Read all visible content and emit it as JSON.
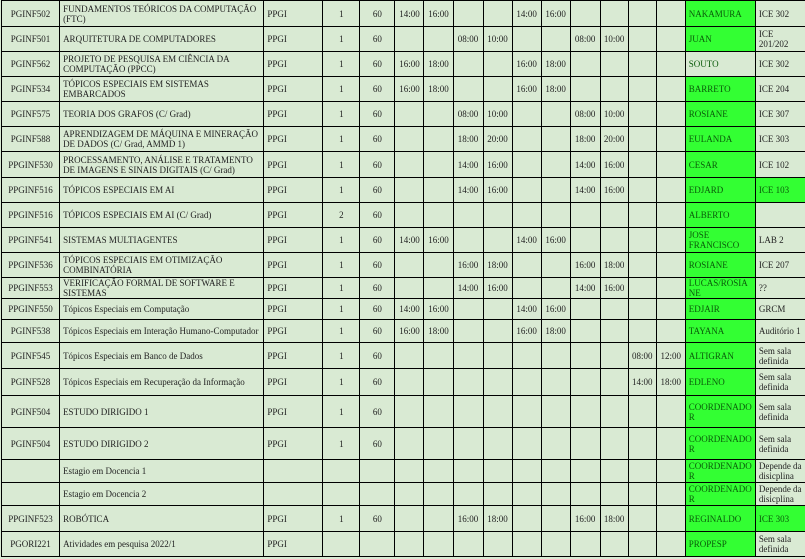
{
  "colors": {
    "row_bg": "#d9ead3",
    "highlight": "#33ff33",
    "prof_text": "#0a5a0a"
  },
  "rows": [
    {
      "code": "PGINF502",
      "name": "FUNDAMENTOS TEÓRICOS DA COMPUTAÇÃO (FTC)",
      "program": "PPGI",
      "class": "1",
      "hours": "60",
      "times": [
        "14:00",
        "16:00",
        "",
        "",
        "14:00",
        "16:00",
        "",
        "",
        "",
        ""
      ],
      "prof": "NAKAMURA",
      "prof_green": true,
      "room": "ICE 302",
      "room_green": false
    },
    {
      "code": "PGINF501",
      "name": "ARQUITETURA DE COMPUTADORES",
      "program": "PPGI",
      "class": "1",
      "hours": "60",
      "times": [
        "",
        "",
        "08:00",
        "10:00",
        "",
        "",
        "08:00",
        "10:00",
        "",
        ""
      ],
      "prof": "JUAN",
      "prof_green": true,
      "room": "ICE 201/202",
      "room_green": false
    },
    {
      "code": "PGINF562",
      "name": "PROJETO DE PESQUISA EM CIÊNCIA DA COMPUTAÇÃO (PPCC)",
      "program": "PPGI",
      "class": "1",
      "hours": "60",
      "times": [
        "16:00",
        "18:00",
        "",
        "",
        "16:00",
        "18:00",
        "",
        "",
        "",
        ""
      ],
      "prof": "SOUTO",
      "prof_green": false,
      "room": "ICE 302",
      "room_green": false
    },
    {
      "code": "PGINF534",
      "name": "TÓPICOS ESPECIAIS EM SISTEMAS EMBARCADOS",
      "program": "PPGI",
      "class": "1",
      "hours": "60",
      "times": [
        "16:00",
        "18:00",
        "",
        "",
        "16:00",
        "18:00",
        "",
        "",
        "",
        ""
      ],
      "prof": "BARRETO",
      "prof_green": true,
      "room": "ICE 204",
      "room_green": false
    },
    {
      "code": "PGINF575",
      "name": "TEORIA DOS GRAFOS (C/ Grad)",
      "program": "PPGI",
      "class": "1",
      "hours": "60",
      "times": [
        "",
        "",
        "08:00",
        "10:00",
        "",
        "",
        "08:00",
        "10:00",
        "",
        ""
      ],
      "prof": "ROSIANE",
      "prof_green": true,
      "room": "ICE 307",
      "room_green": false
    },
    {
      "code": "PGINF588",
      "name": "APRENDIZAGEM DE MÁQUINA E MINERAÇÃO DE DADOS (C/ Grad, AMMD 1)",
      "program": "PPGI",
      "class": "1",
      "hours": "60",
      "times": [
        "",
        "",
        "18:00",
        "20:00",
        "",
        "",
        "18:00",
        "20:00",
        "",
        ""
      ],
      "prof": "EULANDA",
      "prof_green": true,
      "room": "ICE 303",
      "room_green": false
    },
    {
      "code": "PPGINF530",
      "name": "PROCESSAMENTO, ANÁLISE E TRATAMENTO DE IMAGENS E SINAIS DIGITAIS (C/ Grad)",
      "program": "PPGI",
      "class": "1",
      "hours": "60",
      "times": [
        "",
        "",
        "14:00",
        "16:00",
        "",
        "",
        "14:00",
        "16:00",
        "",
        ""
      ],
      "prof": "CESAR",
      "prof_green": true,
      "room": "ICE 102",
      "room_green": false
    },
    {
      "code": "PPGINF516",
      "name": "TÓPICOS ESPECIAIS EM AI",
      "program": "PPGI",
      "class": "1",
      "hours": "60",
      "times": [
        "",
        "",
        "14:00",
        "16:00",
        "",
        "",
        "14:00",
        "16:00",
        "",
        ""
      ],
      "prof": "EDJARD",
      "prof_green": true,
      "room": "ICE 103",
      "room_green": true
    },
    {
      "code": "PPGINF516",
      "name": "TÓPICOS ESPECIAIS EM AI (C/ Grad)",
      "program": "PPGI",
      "class": "2",
      "hours": "60",
      "times": [
        "",
        "",
        "",
        "",
        "",
        "",
        "",
        "",
        "",
        ""
      ],
      "prof": "ALBERTO",
      "prof_green": true,
      "room": "",
      "room_green": false
    },
    {
      "code": "PPGINF541",
      "name": "SISTEMAS MULTIAGENTES",
      "program": "PPGI",
      "class": "1",
      "hours": "60",
      "times": [
        "14:00",
        "16:00",
        "",
        "",
        "14:00",
        "16:00",
        "",
        "",
        "",
        ""
      ],
      "prof": "JOSE FRANCISCO",
      "prof_green": true,
      "room": "LAB 2",
      "room_green": false
    },
    {
      "code": "PPGINF536",
      "name": "TÓPICOS ESPECIAIS EM OTIMIZAÇÃO COMBINATÓRIA",
      "program": "PPGI",
      "class": "1",
      "hours": "60",
      "times": [
        "",
        "",
        "16:00",
        "18:00",
        "",
        "",
        "16:00",
        "18:00",
        "",
        ""
      ],
      "prof": "ROSIANE",
      "prof_green": true,
      "room": "ICE 207",
      "room_green": false
    },
    {
      "code": "PPGINF553",
      "name": "VERIFICAÇÃO FORMAL DE SOFTWARE E SISTEMAS",
      "program": "PPGI",
      "class": "1",
      "hours": "60",
      "times": [
        "",
        "",
        "14:00",
        "16:00",
        "",
        "",
        "14:00",
        "16:00",
        "",
        ""
      ],
      "prof": "LUCAS/ROSIANE",
      "prof_green": true,
      "room": "??",
      "room_green": false
    },
    {
      "code": "PPGINF550",
      "name": "Tópicos Especiais em Computação",
      "program": "PPGI",
      "class": "1",
      "hours": "60",
      "times": [
        "14:00",
        "16:00",
        "",
        "",
        "14:00",
        "16:00",
        "",
        "",
        "",
        ""
      ],
      "prof": "EDJAIR",
      "prof_green": true,
      "room": "GRCM",
      "room_green": false
    },
    {
      "code": "PGINF538",
      "name": "Tópicos Especiais em Interação Humano-Computador",
      "program": "PPGI",
      "class": "1",
      "hours": "60",
      "times": [
        "16:00",
        "18:00",
        "",
        "",
        "16:00",
        "18:00",
        "",
        "",
        "",
        ""
      ],
      "prof": "TAYANA",
      "prof_green": true,
      "room": "Auditório 1",
      "room_green": false
    },
    {
      "code": "PGINF545",
      "name": "Tópicos Especiais em Banco de Dados",
      "program": "PPGI",
      "class": "1",
      "hours": "60",
      "times": [
        "",
        "",
        "",
        "",
        "",
        "",
        "",
        "",
        "08:00",
        "12:00"
      ],
      "prof": "ALTIGRAN",
      "prof_green": true,
      "room": "Sem sala definida",
      "room_green": false
    },
    {
      "code": "PGINF528",
      "name": "Tópicos Especiais em Recuperação da Informação",
      "program": "PPGI",
      "class": "1",
      "hours": "60",
      "times": [
        "",
        "",
        "",
        "",
        "",
        "",
        "",
        "",
        "14:00",
        "18:00"
      ],
      "prof": "EDLENO",
      "prof_green": true,
      "room": "Sem sala definida",
      "room_green": false
    },
    {
      "code": "PGINF504",
      "name": "ESTUDO DIRIGIDO 1",
      "program": "PPGI",
      "class": "1",
      "hours": "60",
      "times": [
        "",
        "",
        "",
        "",
        "",
        "",
        "",
        "",
        "",
        ""
      ],
      "prof": "COORDENADOR",
      "prof_green": true,
      "room": "Sem sala definida",
      "room_green": false
    },
    {
      "code": "PGINF504",
      "name": "ESTUDO DIRIGIDO 2",
      "program": "PPGI",
      "class": "1",
      "hours": "60",
      "times": [
        "",
        "",
        "",
        "",
        "",
        "",
        "",
        "",
        "",
        ""
      ],
      "prof": "COORDENADOR",
      "prof_green": true,
      "room": "Sem sala definida",
      "room_green": false
    },
    {
      "code": "",
      "name": "Estagio em Docencia 1",
      "program": "",
      "class": "",
      "hours": "",
      "times": [
        "",
        "",
        "",
        "",
        "",
        "",
        "",
        "",
        "",
        ""
      ],
      "prof": "COORDENADOR",
      "prof_green": true,
      "room": "Depende da disicplina",
      "room_green": false
    },
    {
      "code": "",
      "name": "Estagio em Docencia 2",
      "program": "",
      "class": "",
      "hours": "",
      "times": [
        "",
        "",
        "",
        "",
        "",
        "",
        "",
        "",
        "",
        ""
      ],
      "prof": "COORDENADOR",
      "prof_green": true,
      "room": "Depende da disicplina",
      "room_green": false
    },
    {
      "code": "PPGINF523",
      "name": "ROBÓTICA",
      "program": "PPGI",
      "class": "1",
      "hours": "60",
      "times": [
        "",
        "",
        "16:00",
        "18:00",
        "",
        "",
        "16:00",
        "18:00",
        "",
        ""
      ],
      "prof": "REGINALDO",
      "prof_green": true,
      "room": "ICE 303",
      "room_green": true
    },
    {
      "code": "PGORI221",
      "name": "Atividades em pesquisa 2022/1",
      "program": "PPGI",
      "class": "",
      "hours": "",
      "times": [
        "",
        "",
        "",
        "",
        "",
        "",
        "",
        "",
        "",
        ""
      ],
      "prof": "PROPESP",
      "prof_green": true,
      "room": "Sem sala definida",
      "room_green": false
    }
  ]
}
